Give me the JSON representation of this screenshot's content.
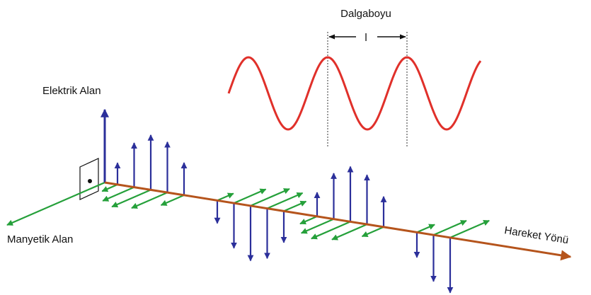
{
  "title": "Dalgaboyu",
  "wavelength_symbol": "l",
  "labels": {
    "electric": "Elektrik Alan",
    "magnetic": "Manyetik Alan",
    "direction": "Hareket Yönü"
  }
}
